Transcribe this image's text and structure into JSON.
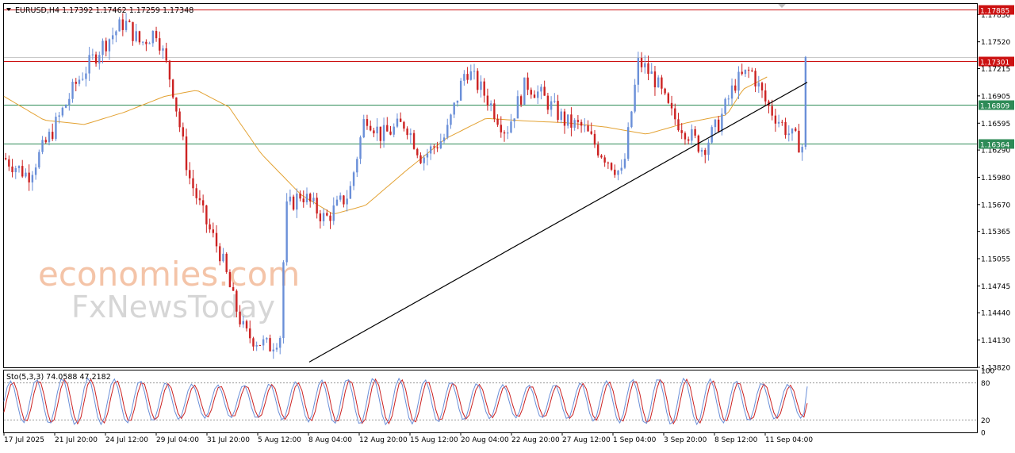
{
  "colors": {
    "bull": "#6a8fd8",
    "bear": "#cc2222",
    "ma": "#e3a233",
    "resistance": "#cc1111",
    "support": "#2e8b57",
    "trendline": "#000000",
    "stoch_main": "#6a8fd8",
    "stoch_signal": "#cc2222",
    "watermark_main": "#f4c4a8",
    "watermark_sub": "#d6d6d6"
  },
  "watermark": {
    "line1": "economies.com",
    "line2": "FxNewsToday"
  },
  "chart_data": [
    {
      "type": "candlestick",
      "title": "EURUSD,H4  1.17392 1.17462 1.17259 1.17348",
      "symbol": "EURUSD",
      "timeframe": "H4",
      "ohlc_header": {
        "open": 1.17392,
        "high": 1.17462,
        "low": 1.17259,
        "close": 1.17348
      },
      "ylim": [
        1.1382,
        1.1795
      ],
      "y_tick_labels": [
        "1.17830",
        "1.17520",
        "1.17215",
        "1.16905",
        "1.16595",
        "1.16290",
        "1.15980",
        "1.15670",
        "1.15365",
        "1.15055",
        "1.14745",
        "1.14440",
        "1.14130",
        "1.13820"
      ],
      "x_tick_labels": [
        "17 Jul 2025",
        "21 Jul 20:00",
        "24 Jul 12:00",
        "29 Jul 04:00",
        "31 Jul 20:00",
        "5 Aug 12:00",
        "8 Aug 04:00",
        "12 Aug 20:00",
        "15 Aug 12:00",
        "20 Aug 04:00",
        "22 Aug 20:00",
        "27 Aug 12:00",
        "1 Sep 04:00",
        "3 Sep 20:00",
        "8 Sep 12:00",
        "11 Sep 04:00"
      ],
      "grid": false,
      "horizontal_levels": [
        {
          "value": 1.17885,
          "label": "1.17885",
          "kind": "resistance"
        },
        {
          "value": 1.17301,
          "label": "1.17301",
          "kind": "resistance"
        },
        {
          "value": 1.16809,
          "label": "1.16809",
          "kind": "support"
        },
        {
          "value": 1.16364,
          "label": "1.16364",
          "kind": "support"
        }
      ],
      "current_price": 1.17348,
      "trendline": {
        "from": {
          "bar": 0.38,
          "price": 1.1388
        },
        "to": {
          "bar": 1.0,
          "price": 1.1706
        }
      },
      "moving_average": {
        "anchors": [
          [
            0,
            1.169
          ],
          [
            0.05,
            1.1663
          ],
          [
            0.1,
            1.1658
          ],
          [
            0.15,
            1.1672
          ],
          [
            0.2,
            1.169
          ],
          [
            0.24,
            1.1697
          ],
          [
            0.28,
            1.1678
          ],
          [
            0.32,
            1.1625
          ],
          [
            0.37,
            1.1578
          ],
          [
            0.41,
            1.1556
          ],
          [
            0.45,
            1.1566
          ],
          [
            0.5,
            1.1605
          ],
          [
            0.55,
            1.1642
          ],
          [
            0.6,
            1.1665
          ],
          [
            0.65,
            1.1662
          ],
          [
            0.7,
            1.166
          ],
          [
            0.75,
            1.1655
          ],
          [
            0.8,
            1.1647
          ],
          [
            0.85,
            1.166
          ],
          [
            0.9,
            1.1669
          ],
          [
            0.92,
            1.1698
          ],
          [
            0.95,
            1.1712
          ]
        ]
      },
      "candle_path": {
        "anchors": [
          [
            0,
            1.162
          ],
          [
            0.03,
            1.16
          ],
          [
            0.06,
            1.165
          ],
          [
            0.09,
            1.1705
          ],
          [
            0.12,
            1.1745
          ],
          [
            0.15,
            1.1775
          ],
          [
            0.17,
            1.175
          ],
          [
            0.19,
            1.1765
          ],
          [
            0.21,
            1.17
          ],
          [
            0.23,
            1.16
          ],
          [
            0.25,
            1.155
          ],
          [
            0.27,
            1.151
          ],
          [
            0.285,
            1.146
          ],
          [
            0.3,
            1.142
          ],
          [
            0.33,
            1.1405
          ],
          [
            0.345,
            1.142
          ],
          [
            0.35,
            1.156
          ],
          [
            0.37,
            1.158
          ],
          [
            0.4,
            1.155
          ],
          [
            0.43,
            1.158
          ],
          [
            0.45,
            1.167
          ],
          [
            0.47,
            1.1645
          ],
          [
            0.5,
            1.166
          ],
          [
            0.52,
            1.162
          ],
          [
            0.55,
            1.1645
          ],
          [
            0.575,
            1.1722
          ],
          [
            0.6,
            1.169
          ],
          [
            0.625,
            1.165
          ],
          [
            0.65,
            1.1705
          ],
          [
            0.67,
            1.169
          ],
          [
            0.7,
            1.166
          ],
          [
            0.72,
            1.1655
          ],
          [
            0.74,
            1.163
          ],
          [
            0.77,
            1.16
          ],
          [
            0.79,
            1.173
          ],
          [
            0.81,
            1.171
          ],
          [
            0.83,
            1.167
          ],
          [
            0.85,
            1.165
          ],
          [
            0.87,
            1.163
          ],
          [
            0.89,
            1.166
          ],
          [
            0.91,
            1.1705
          ],
          [
            0.93,
            1.172
          ],
          [
            0.95,
            1.168
          ],
          [
            0.98,
            1.1645
          ],
          [
            1.0,
            1.1628
          ]
        ],
        "bar_count": 240
      }
    },
    {
      "type": "line",
      "title": "Sto(5,3,3) 74.0588 47.2182",
      "indicator": "Stochastic",
      "params": [
        5,
        3,
        3
      ],
      "main_value": 74.0588,
      "signal_value": 47.2182,
      "ylim": [
        0,
        100
      ],
      "y_tick_labels": [
        "100",
        "80",
        "20",
        "0"
      ],
      "levels": [
        20,
        80
      ],
      "series": [
        {
          "role": "main"
        },
        {
          "role": "signal"
        }
      ]
    }
  ]
}
